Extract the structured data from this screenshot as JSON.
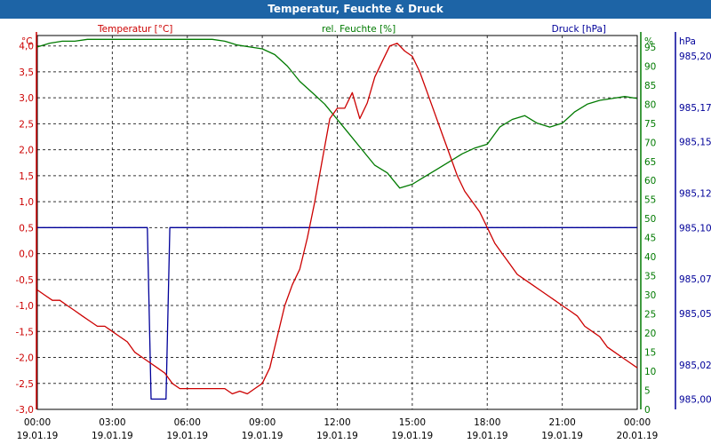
{
  "window": {
    "title": "Temperatur, Feuchte & Druck"
  },
  "colors": {
    "temperature": "#cc0000",
    "humidity": "#007a00",
    "pressure": "#000099",
    "titlebar": "#1d64a6",
    "grid": "#000000"
  },
  "chart_data": {
    "type": "line",
    "title": "Temperatur, Feuchte & Druck",
    "grid": true,
    "x_ticks": [
      {
        "time": "00:00",
        "date": "19.01.19"
      },
      {
        "time": "03:00",
        "date": "19.01.19"
      },
      {
        "time": "06:00",
        "date": "19.01.19"
      },
      {
        "time": "09:00",
        "date": "19.01.19"
      },
      {
        "time": "12:00",
        "date": "19.01.19"
      },
      {
        "time": "15:00",
        "date": "19.01.19"
      },
      {
        "time": "18:00",
        "date": "19.01.19"
      },
      {
        "time": "21:00",
        "date": "19.01.19"
      },
      {
        "time": "00:00",
        "date": "20.01.19"
      }
    ],
    "x_unit": "hours",
    "xlim": [
      0,
      24
    ],
    "axes": {
      "left": {
        "unit": "°C",
        "label": "Temperatur [°C]",
        "ylim": [
          -3.0,
          4.2
        ],
        "ticks": [
          4.0,
          3.5,
          3.0,
          2.5,
          2.0,
          1.5,
          1.0,
          0.5,
          0.0,
          -0.5,
          -1.0,
          -1.5,
          -2.0,
          -2.5,
          -3.0
        ],
        "tick_labels": [
          "4,0",
          "3,5",
          "3,0",
          "2,5",
          "2,0",
          "1,5",
          "1,0",
          "0,5",
          "0,0",
          "-0,5",
          "-1,0",
          "-1,5",
          "-2,0",
          "-2,5",
          "-3,0"
        ]
      },
      "humidity": {
        "unit": "%",
        "label": "rel. Feuchte [%]",
        "ylim": [
          0,
          98
        ],
        "ticks": [
          95,
          90,
          85,
          80,
          75,
          70,
          65,
          60,
          55,
          50,
          45,
          40,
          35,
          30,
          25,
          20,
          15,
          10,
          5,
          0
        ],
        "tick_labels": [
          "95",
          "90",
          "85",
          "80",
          "75",
          "70",
          "65",
          "60",
          "55",
          "50",
          "45",
          "40",
          "35",
          "30",
          "25",
          "20",
          "15",
          "10",
          "5",
          "0"
        ]
      },
      "pressure": {
        "unit": "hPa",
        "label": "Druck [hPa]",
        "ylim": [
          984.994,
          985.212
        ],
        "ticks": [
          985.2,
          985.17,
          985.15,
          985.12,
          985.1,
          985.07,
          985.05,
          985.02,
          985.0
        ],
        "tick_labels": [
          "985,20",
          "985,17",
          "985,15",
          "985,12",
          "985,10",
          "985,07",
          "985,05",
          "985,02",
          "985,00"
        ]
      }
    },
    "series": [
      {
        "name": "Temperatur [°C]",
        "axis": "left",
        "x": [
          0,
          0.3,
          0.6,
          0.9,
          1.2,
          1.5,
          1.8,
          2.1,
          2.4,
          2.7,
          3.0,
          3.3,
          3.6,
          3.9,
          4.2,
          4.5,
          4.8,
          5.1,
          5.4,
          5.7,
          6.0,
          6.3,
          6.6,
          6.9,
          7.2,
          7.5,
          7.8,
          8.1,
          8.4,
          8.7,
          9.0,
          9.3,
          9.6,
          9.9,
          10.2,
          10.5,
          10.8,
          11.1,
          11.4,
          11.7,
          12.0,
          12.3,
          12.6,
          12.9,
          13.2,
          13.5,
          13.8,
          14.1,
          14.4,
          14.7,
          15.0,
          15.3,
          15.6,
          15.9,
          16.2,
          16.5,
          16.8,
          17.1,
          17.4,
          17.7,
          18.0,
          18.3,
          18.6,
          18.9,
          19.2,
          19.5,
          19.8,
          20.1,
          20.4,
          20.7,
          21.0,
          21.3,
          21.6,
          21.9,
          22.2,
          22.5,
          22.8,
          23.1,
          23.4,
          23.7,
          24.0
        ],
        "values": [
          -0.7,
          -0.8,
          -0.9,
          -0.9,
          -1.0,
          -1.1,
          -1.2,
          -1.3,
          -1.4,
          -1.4,
          -1.5,
          -1.6,
          -1.7,
          -1.9,
          -2.0,
          -2.1,
          -2.2,
          -2.3,
          -2.5,
          -2.6,
          -2.6,
          -2.6,
          -2.6,
          -2.6,
          -2.6,
          -2.6,
          -2.7,
          -2.65,
          -2.7,
          -2.6,
          -2.5,
          -2.2,
          -1.6,
          -1.0,
          -0.6,
          -0.3,
          0.3,
          1.0,
          1.8,
          2.6,
          2.8,
          2.8,
          3.1,
          2.6,
          2.9,
          3.4,
          3.7,
          4.0,
          4.05,
          3.9,
          3.8,
          3.5,
          3.1,
          2.7,
          2.3,
          1.9,
          1.5,
          1.2,
          1.0,
          0.8,
          0.5,
          0.2,
          0.0,
          -0.2,
          -0.4,
          -0.5,
          -0.6,
          -0.7,
          -0.8,
          -0.9,
          -1.0,
          -1.1,
          -1.2,
          -1.4,
          -1.5,
          -1.6,
          -1.8,
          -1.9,
          -2.0,
          -2.1,
          -2.2
        ]
      },
      {
        "name": "rel. Feuchte [%]",
        "axis": "humidity",
        "x": [
          0,
          0.5,
          1.0,
          1.5,
          2.0,
          2.5,
          3.0,
          3.5,
          4.0,
          4.5,
          5.0,
          5.5,
          6.0,
          6.5,
          7.0,
          7.5,
          8.0,
          8.5,
          9.0,
          9.5,
          10.0,
          10.5,
          11.0,
          11.5,
          12.0,
          12.5,
          13.0,
          13.5,
          14.0,
          14.5,
          15.0,
          15.5,
          16.0,
          16.5,
          17.0,
          17.5,
          18.0,
          18.5,
          19.0,
          19.5,
          20.0,
          20.5,
          21.0,
          21.5,
          22.0,
          22.5,
          23.0,
          23.5,
          24.0
        ],
        "values": [
          95,
          96,
          96.5,
          96.5,
          97,
          97,
          97,
          97,
          97,
          97,
          97,
          97,
          97,
          97,
          97,
          96.5,
          95.5,
          95,
          94.5,
          93,
          90,
          86,
          83,
          80,
          76,
          72,
          68,
          64,
          62,
          58,
          59,
          61,
          63,
          65,
          67,
          68.5,
          69.5,
          74,
          76,
          77,
          75,
          74,
          75,
          78,
          80,
          81,
          81.5,
          82,
          81.5
        ]
      },
      {
        "name": "Druck [hPa]",
        "axis": "pressure",
        "x": [
          0,
          4.4,
          4.55,
          5.15,
          5.3,
          24
        ],
        "values": [
          985.1,
          985.1,
          985.0,
          985.0,
          985.1,
          985.1
        ]
      }
    ]
  }
}
